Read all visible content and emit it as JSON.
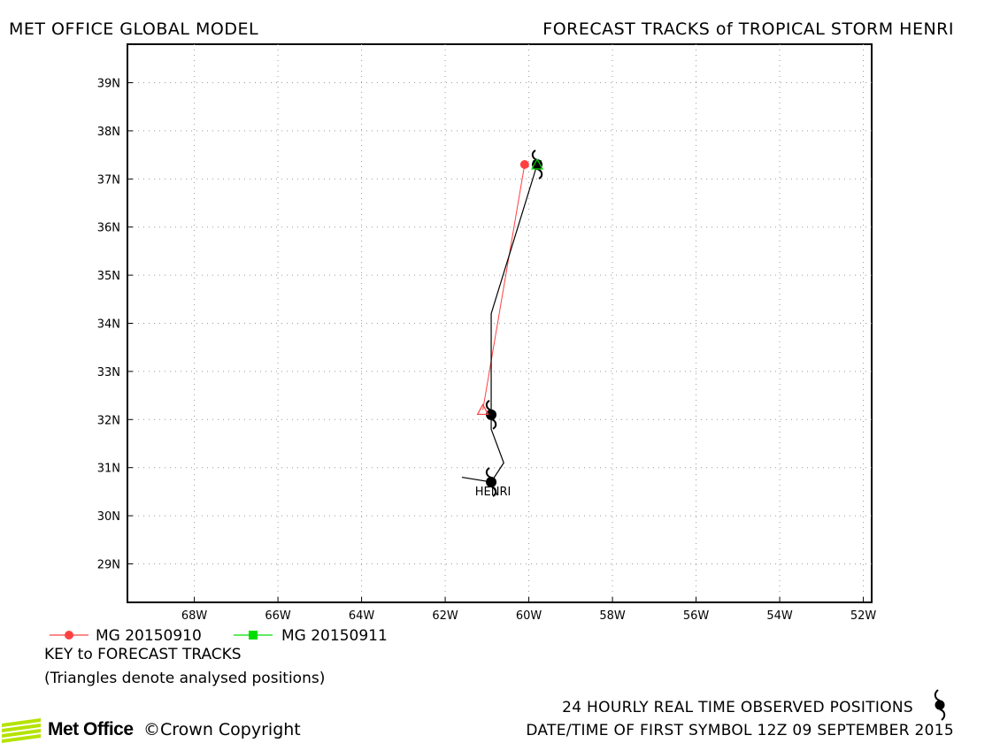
{
  "header": {
    "left_title": "MET OFFICE GLOBAL MODEL",
    "right_title": "FORECAST TRACKS of TROPICAL STORM HENRI"
  },
  "map": {
    "lon_range": [
      -69.6,
      -51.8
    ],
    "lat_range": [
      28.2,
      39.8
    ],
    "grid": true,
    "lon_ticks": [
      {
        "value": -68,
        "label": "68W"
      },
      {
        "value": -66,
        "label": "66W"
      },
      {
        "value": -64,
        "label": "64W"
      },
      {
        "value": -62,
        "label": "62W"
      },
      {
        "value": -60,
        "label": "60W"
      },
      {
        "value": -58,
        "label": "58W"
      },
      {
        "value": -56,
        "label": "56W"
      },
      {
        "value": -54,
        "label": "54W"
      },
      {
        "value": -52,
        "label": "52W"
      }
    ],
    "lat_ticks": [
      {
        "value": 29,
        "label": "29N"
      },
      {
        "value": 30,
        "label": "30N"
      },
      {
        "value": 31,
        "label": "31N"
      },
      {
        "value": 32,
        "label": "32N"
      },
      {
        "value": 33,
        "label": "33N"
      },
      {
        "value": 34,
        "label": "34N"
      },
      {
        "value": 35,
        "label": "35N"
      },
      {
        "value": 36,
        "label": "36N"
      },
      {
        "value": 37,
        "label": "37N"
      },
      {
        "value": 38,
        "label": "38N"
      },
      {
        "value": 39,
        "label": "39N"
      }
    ],
    "storm_label": "HENRI",
    "observed_track": [
      {
        "lon": -61.6,
        "lat": 30.8
      },
      {
        "lon": -60.9,
        "lat": 30.7
      },
      {
        "lon": -60.6,
        "lat": 31.1
      },
      {
        "lon": -60.9,
        "lat": 31.8
      },
      {
        "lon": -60.9,
        "lat": 32.1
      },
      {
        "lon": -60.9,
        "lat": 34.2
      },
      {
        "lon": -59.8,
        "lat": 37.3
      }
    ],
    "observed_symbols": [
      {
        "lon": -60.9,
        "lat": 30.7
      },
      {
        "lon": -60.9,
        "lat": 32.1
      },
      {
        "lon": -59.8,
        "lat": 37.3
      }
    ],
    "forecast_tracks": [
      {
        "name": "MG 20150910",
        "color": "#ff4040",
        "marker": "circle",
        "points": [
          {
            "lon": -61.1,
            "lat": 32.2
          },
          {
            "lon": -60.1,
            "lat": 37.3
          }
        ],
        "analysed": {
          "lon": -61.1,
          "lat": 32.2
        }
      },
      {
        "name": "MG 20150911",
        "color": "#00dd00",
        "marker": "square",
        "points": [
          {
            "lon": -59.8,
            "lat": 37.3
          }
        ],
        "analysed": {
          "lon": -59.8,
          "lat": 37.3
        }
      }
    ]
  },
  "legend": {
    "key_title": "KEY to FORECAST TRACKS",
    "note": "(Triangles denote analysed positions)"
  },
  "footer": {
    "observed_positions": "24 HOURLY REAL TIME OBSERVED POSITIONS",
    "first_symbol": "DATE/TIME OF FIRST SYMBOL 12Z 09 SEPTEMBER 2015",
    "logo_text": "Met Office",
    "copyright": "©Crown Copyright"
  }
}
